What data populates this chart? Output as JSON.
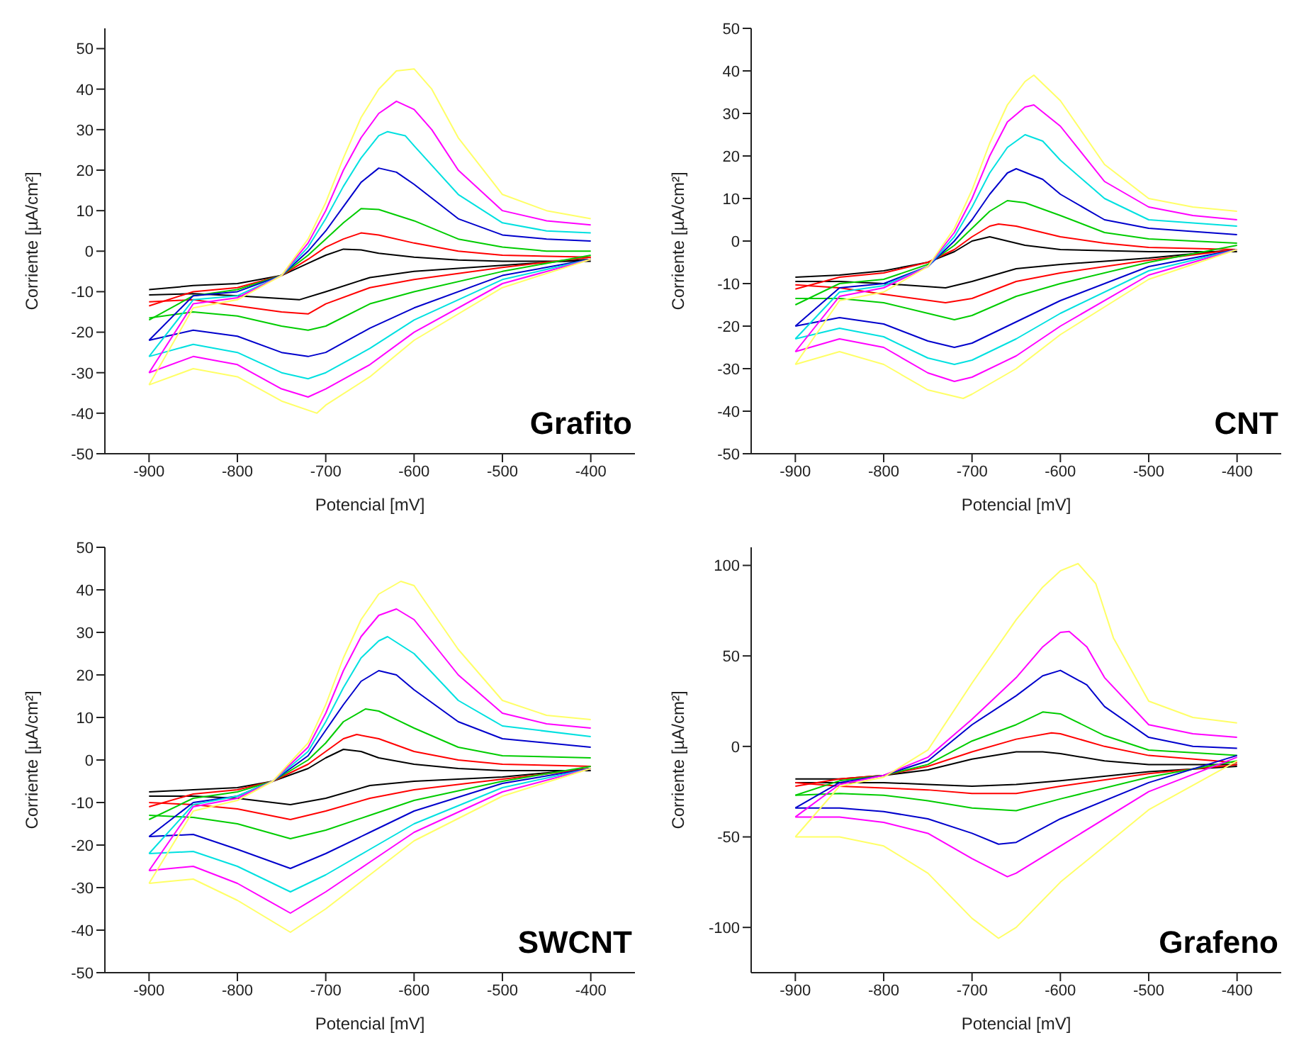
{
  "chart_data": [
    {
      "type": "line",
      "xlabel": "Potencial [mV]",
      "ylabel": "Corriente [µA/cm²]",
      "annotations": [
        "Grafito"
      ],
      "xlim": [
        -950,
        -350
      ],
      "xticks": [
        -900,
        -800,
        -700,
        -600,
        -500,
        -400
      ],
      "ylim": [
        -50,
        55
      ],
      "yticks": [
        -50,
        -40,
        -30,
        -20,
        -10,
        0,
        10,
        20,
        30,
        40,
        50
      ],
      "marker": "none",
      "line_style": "solid",
      "series": [
        {
          "color": "#000000",
          "x": [
            -900,
            -850,
            -800,
            -750,
            -720,
            -700,
            -680,
            -660,
            -640,
            -600,
            -550,
            -500,
            -400
          ],
          "values": [
            -9.5,
            -8.5,
            -8,
            -6,
            -3,
            -1,
            0.5,
            0.3,
            -0.5,
            -1.5,
            -2.2,
            -2.5,
            -2.5
          ]
        },
        {
          "color": "#000000",
          "x": [
            -900,
            -850,
            -800,
            -730,
            -700,
            -650,
            -600,
            -500,
            -400
          ],
          "values": [
            -10.8,
            -10.5,
            -11,
            -12,
            -10,
            -6.5,
            -5,
            -3.5,
            -2
          ]
        },
        {
          "color": "#ff0000",
          "x": [
            -900,
            -850,
            -800,
            -750,
            -720,
            -700,
            -680,
            -660,
            -640,
            -600,
            -550,
            -500,
            -400
          ],
          "values": [
            -13.5,
            -10,
            -9,
            -6,
            -2,
            1,
            3,
            4.5,
            4,
            2,
            0,
            -1,
            -1.5
          ]
        },
        {
          "color": "#ff0000",
          "x": [
            -900,
            -850,
            -800,
            -750,
            -720,
            -700,
            -650,
            -600,
            -500,
            -400
          ],
          "values": [
            -12.5,
            -12,
            -13.5,
            -15,
            -15.5,
            -13,
            -9,
            -7,
            -4,
            -1.5
          ]
        },
        {
          "color": "#00cc00",
          "x": [
            -900,
            -850,
            -800,
            -750,
            -720,
            -700,
            -680,
            -660,
            -640,
            -600,
            -550,
            -500,
            -450,
            -400
          ],
          "values": [
            -17,
            -11,
            -9.5,
            -6,
            -1,
            3,
            7,
            10.5,
            10.3,
            7.5,
            3,
            1,
            0,
            0
          ]
        },
        {
          "color": "#00cc00",
          "x": [
            -900,
            -850,
            -800,
            -750,
            -720,
            -700,
            -650,
            -600,
            -500,
            -400
          ],
          "values": [
            -16.5,
            -15,
            -16,
            -18.5,
            -19.5,
            -18.5,
            -13,
            -10,
            -5,
            -1
          ]
        },
        {
          "color": "#0000cc",
          "x": [
            -900,
            -850,
            -800,
            -750,
            -720,
            -700,
            -680,
            -660,
            -640,
            -620,
            -600,
            -550,
            -500,
            -450,
            -400
          ],
          "values": [
            -22,
            -11,
            -10,
            -6,
            0,
            5,
            11,
            17,
            20.5,
            19.5,
            16.5,
            8,
            4,
            3,
            2.5
          ]
        },
        {
          "color": "#0000cc",
          "x": [
            -900,
            -850,
            -800,
            -750,
            -720,
            -700,
            -650,
            -600,
            -500,
            -400
          ],
          "values": [
            -22,
            -19.5,
            -21,
            -25,
            -26,
            -25,
            -19,
            -14,
            -6,
            -2
          ]
        },
        {
          "color": "#00e0e0",
          "x": [
            -900,
            -850,
            -800,
            -750,
            -720,
            -700,
            -680,
            -660,
            -640,
            -630,
            -610,
            -600,
            -550,
            -500,
            -450,
            -400
          ],
          "values": [
            -26,
            -12,
            -11,
            -6,
            1,
            8,
            16,
            23,
            28.5,
            29.5,
            28.5,
            26,
            14,
            7,
            5,
            4.5
          ]
        },
        {
          "color": "#00e0e0",
          "x": [
            -900,
            -850,
            -800,
            -750,
            -720,
            -700,
            -650,
            -600,
            -500,
            -400
          ],
          "values": [
            -26,
            -23,
            -25,
            -30,
            -31.5,
            -30,
            -24,
            -17,
            -7,
            -2
          ]
        },
        {
          "color": "#ff00ff",
          "x": [
            -900,
            -850,
            -800,
            -750,
            -720,
            -700,
            -680,
            -660,
            -640,
            -620,
            -600,
            -580,
            -550,
            -500,
            -450,
            -400
          ],
          "values": [
            -30,
            -13,
            -11.5,
            -6,
            2,
            10,
            20,
            28,
            34,
            37,
            35,
            30,
            20,
            10,
            7.5,
            6.5
          ]
        },
        {
          "color": "#ff00ff",
          "x": [
            -900,
            -850,
            -800,
            -750,
            -720,
            -700,
            -650,
            -600,
            -500,
            -400
          ],
          "values": [
            -30,
            -26,
            -28,
            -34,
            -36,
            -34,
            -28,
            -20,
            -8,
            -2
          ]
        },
        {
          "color": "#ffff66",
          "x": [
            -900,
            -850,
            -800,
            -750,
            -720,
            -700,
            -680,
            -660,
            -640,
            -620,
            -600,
            -580,
            -550,
            -500,
            -450,
            -400
          ],
          "values": [
            -33,
            -14,
            -12,
            -6,
            3,
            12,
            23,
            33,
            40,
            44.5,
            45,
            40,
            28,
            14,
            10,
            8
          ]
        },
        {
          "color": "#ffff66",
          "x": [
            -900,
            -850,
            -800,
            -750,
            -710,
            -700,
            -650,
            -600,
            -500,
            -400
          ],
          "values": [
            -33,
            -29,
            -31,
            -37,
            -40,
            -38,
            -31,
            -22,
            -9,
            -2
          ]
        }
      ]
    },
    {
      "type": "line",
      "xlabel": "Potencial [mV]",
      "ylabel": "Corriente [µA/cm²]",
      "annotations": [
        "CNT"
      ],
      "xlim": [
        -950,
        -350
      ],
      "xticks": [
        -900,
        -800,
        -700,
        -600,
        -500,
        -400
      ],
      "ylim": [
        -50,
        50
      ],
      "yticks": [
        -50,
        -40,
        -30,
        -20,
        -10,
        0,
        10,
        20,
        30,
        40,
        50
      ],
      "marker": "none",
      "line_style": "solid",
      "series": [
        {
          "color": "#000000",
          "x": [
            -900,
            -850,
            -800,
            -750,
            -720,
            -700,
            -680,
            -660,
            -640,
            -600,
            -500,
            -400
          ],
          "values": [
            -8.5,
            -8,
            -7,
            -5,
            -2.5,
            0,
            1,
            0,
            -1,
            -2,
            -2.5,
            -2.5
          ]
        },
        {
          "color": "#000000",
          "x": [
            -900,
            -850,
            -800,
            -730,
            -700,
            -650,
            -600,
            -500,
            -400
          ],
          "values": [
            -9.5,
            -9.5,
            -10,
            -11,
            -9.5,
            -6.5,
            -5.5,
            -4,
            -2
          ]
        },
        {
          "color": "#ff0000",
          "x": [
            -900,
            -850,
            -800,
            -750,
            -720,
            -700,
            -680,
            -670,
            -650,
            -600,
            -550,
            -500,
            -400
          ],
          "values": [
            -11.3,
            -8.5,
            -7.5,
            -5,
            -2,
            1,
            3.5,
            4,
            3.5,
            1,
            -0.5,
            -1.5,
            -2
          ]
        },
        {
          "color": "#ff0000",
          "x": [
            -900,
            -850,
            -800,
            -730,
            -700,
            -650,
            -600,
            -500,
            -400
          ],
          "values": [
            -10.3,
            -11,
            -12.5,
            -14.5,
            -13.5,
            -9.5,
            -7.5,
            -4.5,
            -2
          ]
        },
        {
          "color": "#00cc00",
          "x": [
            -900,
            -850,
            -800,
            -750,
            -720,
            -700,
            -680,
            -660,
            -640,
            -600,
            -550,
            -500,
            -400
          ],
          "values": [
            -15,
            -10,
            -9,
            -5.5,
            -1,
            3,
            7,
            9.5,
            9,
            6,
            2,
            0.5,
            -0.5
          ]
        },
        {
          "color": "#00cc00",
          "x": [
            -900,
            -850,
            -800,
            -750,
            -720,
            -700,
            -650,
            -600,
            -500,
            -400
          ],
          "values": [
            -13.5,
            -13.5,
            -14.5,
            -17,
            -18.5,
            -17.5,
            -13,
            -10,
            -5,
            -1
          ]
        },
        {
          "color": "#0000cc",
          "x": [
            -900,
            -850,
            -800,
            -750,
            -720,
            -700,
            -680,
            -660,
            -650,
            -620,
            -600,
            -550,
            -500,
            -400
          ],
          "values": [
            -20,
            -11,
            -10,
            -6,
            0,
            5,
            11,
            16,
            17,
            14.5,
            11,
            5,
            3,
            1.5
          ]
        },
        {
          "color": "#0000cc",
          "x": [
            -900,
            -850,
            -800,
            -750,
            -720,
            -700,
            -650,
            -600,
            -500,
            -400
          ],
          "values": [
            -20,
            -18,
            -19.5,
            -23.5,
            -25,
            -24,
            -19,
            -14,
            -6,
            -2
          ]
        },
        {
          "color": "#00e0e0",
          "x": [
            -900,
            -850,
            -800,
            -750,
            -720,
            -700,
            -680,
            -660,
            -640,
            -620,
            -600,
            -550,
            -500,
            -400
          ],
          "values": [
            -23,
            -12,
            -10.5,
            -6,
            1,
            8,
            16,
            22,
            25,
            23.5,
            19,
            10,
            5,
            3.5
          ]
        },
        {
          "color": "#00e0e0",
          "x": [
            -900,
            -850,
            -800,
            -750,
            -720,
            -700,
            -650,
            -600,
            -500,
            -400
          ],
          "values": [
            -23,
            -20.5,
            -22.5,
            -27.5,
            -29,
            -28,
            -23,
            -17,
            -7,
            -2
          ]
        },
        {
          "color": "#ff00ff",
          "x": [
            -900,
            -850,
            -800,
            -750,
            -720,
            -700,
            -680,
            -660,
            -640,
            -630,
            -600,
            -550,
            -500,
            -450,
            -400
          ],
          "values": [
            -26,
            -13,
            -11,
            -6,
            2,
            10,
            20,
            28,
            31.5,
            32,
            27,
            14,
            8,
            6,
            5
          ]
        },
        {
          "color": "#ff00ff",
          "x": [
            -900,
            -850,
            -800,
            -750,
            -720,
            -700,
            -650,
            -600,
            -500,
            -400
          ],
          "values": [
            -26,
            -23,
            -25,
            -31,
            -33,
            -32,
            -27,
            -20,
            -8,
            -2
          ]
        },
        {
          "color": "#ffff66",
          "x": [
            -900,
            -850,
            -800,
            -750,
            -720,
            -700,
            -680,
            -660,
            -640,
            -630,
            -600,
            -550,
            -500,
            -450,
            -400
          ],
          "values": [
            -29,
            -14,
            -12,
            -6,
            3,
            12,
            23,
            32,
            37.5,
            39,
            33,
            18,
            10,
            8,
            7
          ]
        },
        {
          "color": "#ffff66",
          "x": [
            -900,
            -850,
            -800,
            -750,
            -710,
            -700,
            -650,
            -600,
            -500,
            -400
          ],
          "values": [
            -29,
            -26,
            -29,
            -35,
            -37,
            -36,
            -30,
            -22,
            -9,
            -2
          ]
        }
      ]
    },
    {
      "type": "line",
      "xlabel": "Potencial [mV]",
      "ylabel": "Corriente [µA/cm²]",
      "annotations": [
        "SWCNT"
      ],
      "xlim": [
        -950,
        -350
      ],
      "xticks": [
        -900,
        -800,
        -700,
        -600,
        -500,
        -400
      ],
      "ylim": [
        -50,
        50
      ],
      "yticks": [
        -50,
        -40,
        -30,
        -20,
        -10,
        0,
        10,
        20,
        30,
        40,
        50
      ],
      "marker": "none",
      "line_style": "solid",
      "series": [
        {
          "color": "#000000",
          "x": [
            -900,
            -850,
            -800,
            -760,
            -720,
            -700,
            -680,
            -660,
            -640,
            -600,
            -550,
            -500,
            -400
          ],
          "values": [
            -7.5,
            -7,
            -6.5,
            -5,
            -2,
            0.5,
            2.5,
            2,
            0.5,
            -1,
            -2,
            -2.5,
            -2.5
          ]
        },
        {
          "color": "#000000",
          "x": [
            -900,
            -850,
            -800,
            -740,
            -700,
            -650,
            -600,
            -500,
            -400
          ],
          "values": [
            -8.5,
            -8.5,
            -9,
            -10.5,
            -9,
            -6,
            -5,
            -4,
            -2
          ]
        },
        {
          "color": "#ff0000",
          "x": [
            -900,
            -850,
            -800,
            -760,
            -720,
            -700,
            -680,
            -665,
            -640,
            -600,
            -550,
            -500,
            -400
          ],
          "values": [
            -11,
            -8,
            -7,
            -5,
            -1,
            2,
            5,
            6,
            5,
            2,
            0,
            -1,
            -1.5
          ]
        },
        {
          "color": "#ff0000",
          "x": [
            -900,
            -850,
            -800,
            -740,
            -700,
            -650,
            -600,
            -500,
            -400
          ],
          "values": [
            -10,
            -10.5,
            -11.5,
            -14,
            -12,
            -9,
            -7,
            -4.5,
            -2
          ]
        },
        {
          "color": "#00cc00",
          "x": [
            -900,
            -850,
            -800,
            -760,
            -720,
            -700,
            -680,
            -655,
            -640,
            -600,
            -550,
            -500,
            -400
          ],
          "values": [
            -14,
            -9,
            -7.5,
            -5,
            0,
            4,
            9,
            12,
            11.5,
            7.5,
            3,
            1,
            0.5
          ]
        },
        {
          "color": "#00cc00",
          "x": [
            -900,
            -850,
            -800,
            -740,
            -700,
            -650,
            -600,
            -500,
            -400
          ],
          "values": [
            -13,
            -13.5,
            -15,
            -18.5,
            -16.5,
            -13,
            -9.5,
            -5,
            -1.5
          ]
        },
        {
          "color": "#0000cc",
          "x": [
            -900,
            -850,
            -800,
            -760,
            -720,
            -700,
            -680,
            -660,
            -640,
            -620,
            -600,
            -550,
            -500,
            -400
          ],
          "values": [
            -18,
            -10,
            -8.5,
            -5,
            1,
            7,
            13,
            18.5,
            21,
            20,
            16.5,
            9,
            5,
            3
          ]
        },
        {
          "color": "#0000cc",
          "x": [
            -900,
            -850,
            -800,
            -740,
            -700,
            -650,
            -600,
            -500,
            -400
          ],
          "values": [
            -18,
            -17.5,
            -21,
            -25.5,
            -22,
            -17,
            -12,
            -5.5,
            -2
          ]
        },
        {
          "color": "#00e0e0",
          "x": [
            -900,
            -850,
            -800,
            -760,
            -720,
            -700,
            -680,
            -660,
            -640,
            -630,
            -600,
            -550,
            -500,
            -400
          ],
          "values": [
            -22,
            -10.5,
            -8.5,
            -5,
            2,
            9,
            17,
            24,
            28,
            29,
            25,
            14,
            8,
            5.5
          ]
        },
        {
          "color": "#00e0e0",
          "x": [
            -900,
            -850,
            -800,
            -740,
            -700,
            -650,
            -600,
            -500,
            -400
          ],
          "values": [
            -22,
            -21.5,
            -25,
            -31,
            -27,
            -21,
            -15,
            -6.5,
            -2
          ]
        },
        {
          "color": "#ff00ff",
          "x": [
            -900,
            -850,
            -800,
            -760,
            -720,
            -700,
            -680,
            -660,
            -640,
            -620,
            -600,
            -550,
            -500,
            -450,
            -400
          ],
          "values": [
            -26,
            -11,
            -9,
            -5,
            3,
            11,
            21,
            29,
            34,
            35.5,
            33,
            20,
            11,
            8.5,
            7.5
          ]
        },
        {
          "color": "#ff00ff",
          "x": [
            -900,
            -850,
            -800,
            -740,
            -700,
            -650,
            -600,
            -500,
            -400
          ],
          "values": [
            -26,
            -25,
            -29,
            -36,
            -31,
            -24,
            -17,
            -7.5,
            -2
          ]
        },
        {
          "color": "#ffff66",
          "x": [
            -900,
            -850,
            -800,
            -760,
            -720,
            -700,
            -680,
            -660,
            -640,
            -615,
            -600,
            -550,
            -500,
            -450,
            -400
          ],
          "values": [
            -29,
            -12,
            -9.5,
            -5,
            4,
            13,
            24,
            33,
            39,
            42,
            41,
            26,
            14,
            10.5,
            9.5
          ]
        },
        {
          "color": "#ffff66",
          "x": [
            -900,
            -850,
            -800,
            -740,
            -700,
            -650,
            -600,
            -500,
            -400
          ],
          "values": [
            -29,
            -28,
            -33,
            -40.5,
            -35,
            -27,
            -19,
            -8.5,
            -2
          ]
        }
      ]
    },
    {
      "type": "line",
      "xlabel": "Potencial [mV]",
      "ylabel": "Corriente [µA/cm²]",
      "annotations": [
        "Grafeno"
      ],
      "xlim": [
        -950,
        -350
      ],
      "xticks": [
        -900,
        -800,
        -700,
        -600,
        -500,
        -400
      ],
      "ylim": [
        -125,
        110
      ],
      "yticks": [
        -100,
        -50,
        0,
        50,
        100
      ],
      "marker": "none",
      "line_style": "solid",
      "series": [
        {
          "color": "#000000",
          "x": [
            -900,
            -850,
            -800,
            -750,
            -700,
            -650,
            -620,
            -600,
            -550,
            -500,
            -400
          ],
          "values": [
            -18,
            -18,
            -16,
            -13,
            -7,
            -3,
            -3,
            -4,
            -8,
            -10,
            -10
          ]
        },
        {
          "color": "#000000",
          "x": [
            -900,
            -850,
            -800,
            -750,
            -700,
            -650,
            -600,
            -500,
            -400
          ],
          "values": [
            -20,
            -20,
            -20,
            -21,
            -22,
            -21,
            -19,
            -14,
            -11
          ]
        },
        {
          "color": "#ff0000",
          "x": [
            -900,
            -850,
            -800,
            -750,
            -700,
            -650,
            -610,
            -600,
            -550,
            -500,
            -400
          ],
          "values": [
            -22,
            -18,
            -16,
            -11,
            -3,
            4,
            7.5,
            7,
            0,
            -5,
            -9
          ]
        },
        {
          "color": "#ff0000",
          "x": [
            -900,
            -850,
            -800,
            -750,
            -700,
            -650,
            -600,
            -500,
            -400
          ],
          "values": [
            -20,
            -22,
            -23,
            -24,
            -26,
            -26,
            -22,
            -15,
            -10
          ]
        },
        {
          "color": "#00cc00",
          "x": [
            -900,
            -850,
            -800,
            -750,
            -700,
            -650,
            -620,
            -600,
            -550,
            -500,
            -400
          ],
          "values": [
            -27,
            -19,
            -16,
            -10,
            3,
            12,
            19,
            18,
            6,
            -2,
            -5
          ]
        },
        {
          "color": "#00cc00",
          "x": [
            -900,
            -850,
            -800,
            -750,
            -700,
            -650,
            -600,
            -500,
            -400
          ],
          "values": [
            -27,
            -26,
            -27,
            -30,
            -34,
            -35.5,
            -29,
            -17,
            -8
          ]
        },
        {
          "color": "#0000cc",
          "x": [
            -900,
            -850,
            -800,
            -750,
            -700,
            -650,
            -620,
            -600,
            -570,
            -550,
            -500,
            -450,
            -400
          ],
          "values": [
            -34,
            -20,
            -16,
            -8,
            12,
            28,
            39,
            42,
            34,
            22,
            5,
            0,
            -1
          ]
        },
        {
          "color": "#0000cc",
          "x": [
            -900,
            -850,
            -800,
            -750,
            -700,
            -670,
            -650,
            -600,
            -500,
            -400
          ],
          "values": [
            -34,
            -34,
            -36,
            -40,
            -48,
            -54,
            -53,
            -40,
            -20,
            -5
          ]
        },
        {
          "color": "#ff00ff",
          "x": [
            -900,
            -850,
            -800,
            -750,
            -700,
            -650,
            -620,
            -600,
            -590,
            -570,
            -550,
            -500,
            -450,
            -400
          ],
          "values": [
            -39,
            -21,
            -16,
            -6,
            15,
            38,
            55,
            63,
            63.5,
            55,
            38,
            12,
            7,
            5
          ]
        },
        {
          "color": "#ff00ff",
          "x": [
            -900,
            -850,
            -800,
            -750,
            -700,
            -660,
            -650,
            -600,
            -500,
            -400
          ],
          "values": [
            -39,
            -39,
            -42,
            -48,
            -62,
            -72,
            -70,
            -55,
            -25,
            -6
          ]
        },
        {
          "color": "#ffff66",
          "x": [
            -900,
            -850,
            -800,
            -750,
            -700,
            -650,
            -620,
            -600,
            -580,
            -560,
            -540,
            -500,
            -450,
            -400
          ],
          "values": [
            -50,
            -22,
            -17,
            -2,
            35,
            70,
            88,
            97,
            101,
            90,
            60,
            25,
            16,
            13
          ]
        },
        {
          "color": "#ffff66",
          "x": [
            -900,
            -850,
            -800,
            -750,
            -700,
            -670,
            -650,
            -600,
            -500,
            -400
          ],
          "values": [
            -50,
            -50,
            -55,
            -70,
            -95,
            -106,
            -100,
            -75,
            -35,
            -8
          ]
        }
      ]
    }
  ]
}
